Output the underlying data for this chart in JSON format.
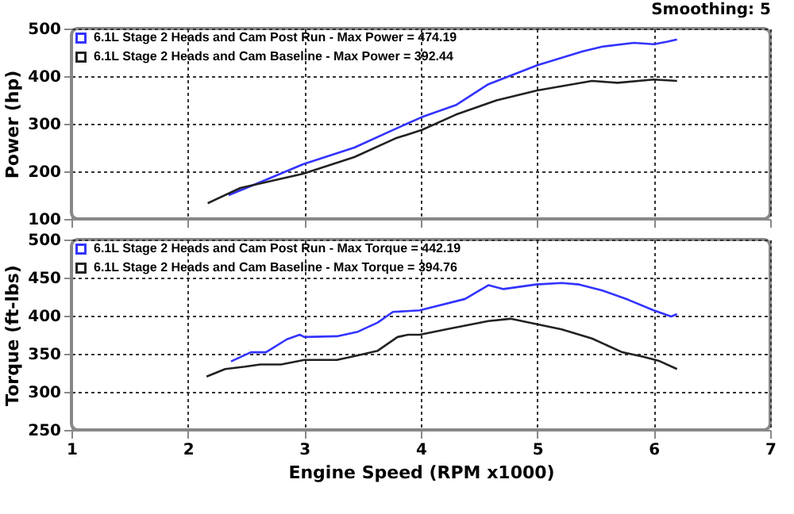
{
  "chart_data": [
    {
      "type": "line",
      "ylabel": "Power (hp)",
      "annotations": [
        "Smoothing: 5"
      ],
      "xlim": [
        1,
        7
      ],
      "xticks": [
        1,
        2,
        3,
        4,
        5,
        6,
        7
      ],
      "ylim": [
        100,
        500
      ],
      "yticks": [
        100,
        200,
        300,
        400,
        500
      ],
      "grid": true,
      "legend": "top left",
      "tick_labels": "y",
      "series": [
        {
          "name": "6.1L Stage 2 Heads and Cam Post Run - Max Power = 474.19",
          "color": "#3333ff",
          "x": [
            2.35,
            2.6,
            2.99,
            3.43,
            3.78,
            4.01,
            4.3,
            4.58,
            5.0,
            5.39,
            5.56,
            5.83,
            6.0,
            6.11,
            6.2
          ],
          "values": [
            150,
            175,
            215,
            250,
            289,
            314,
            339,
            383,
            423,
            452,
            462,
            470,
            467,
            472,
            477
          ]
        },
        {
          "name": "6.1L Stage 2 Heads and Cam Baseline - Max Power = 392.44",
          "color": "#222222",
          "x": [
            2.17,
            2.45,
            2.99,
            3.43,
            3.78,
            4.01,
            4.3,
            4.65,
            5.0,
            5.47,
            5.69,
            6.0,
            6.2
          ],
          "values": [
            133,
            165,
            195,
            230,
            269,
            287,
            319,
            349,
            370,
            390,
            386,
            393,
            390
          ]
        }
      ]
    },
    {
      "type": "line",
      "xlabel": "Engine Speed (RPM x1000)",
      "ylabel": "Torque (ft-lbs)",
      "xlim": [
        1,
        7
      ],
      "xticks": [
        1,
        2,
        3,
        4,
        5,
        6,
        7
      ],
      "ylim": [
        250,
        500
      ],
      "yticks": [
        250,
        300,
        350,
        400,
        450,
        500
      ],
      "grid": true,
      "legend": "top left",
      "series": [
        {
          "name": "6.1L Stage 2 Heads and Cam Post Run - Max Torque = 442.19",
          "color": "#3333ff",
          "x": [
            2.37,
            2.54,
            2.67,
            2.85,
            2.96,
            3.0,
            3.28,
            3.46,
            3.63,
            3.76,
            3.99,
            4.38,
            4.58,
            4.71,
            4.99,
            5.21,
            5.36,
            5.56,
            5.78,
            6.0,
            6.15,
            6.2
          ],
          "values": [
            340,
            352,
            352,
            369,
            375,
            372,
            373,
            379,
            391,
            405,
            407,
            422,
            440,
            435,
            441,
            443,
            441,
            433,
            421,
            407,
            399,
            402
          ]
        },
        {
          "name": "6.1L Stage 2 Heads and Cam Baseline - Max Torque = 394.76",
          "color": "#222222",
          "x": [
            2.16,
            2.32,
            2.49,
            2.62,
            2.8,
            3.0,
            3.28,
            3.46,
            3.63,
            3.8,
            3.89,
            3.99,
            4.25,
            4.58,
            4.77,
            4.99,
            5.21,
            5.47,
            5.73,
            5.91,
            6.04,
            6.2
          ],
          "values": [
            320,
            330,
            333,
            336,
            336,
            342,
            342,
            348,
            354,
            372,
            375,
            375,
            383,
            393,
            396,
            389,
            382,
            370,
            352,
            346,
            341,
            330
          ]
        }
      ]
    }
  ]
}
